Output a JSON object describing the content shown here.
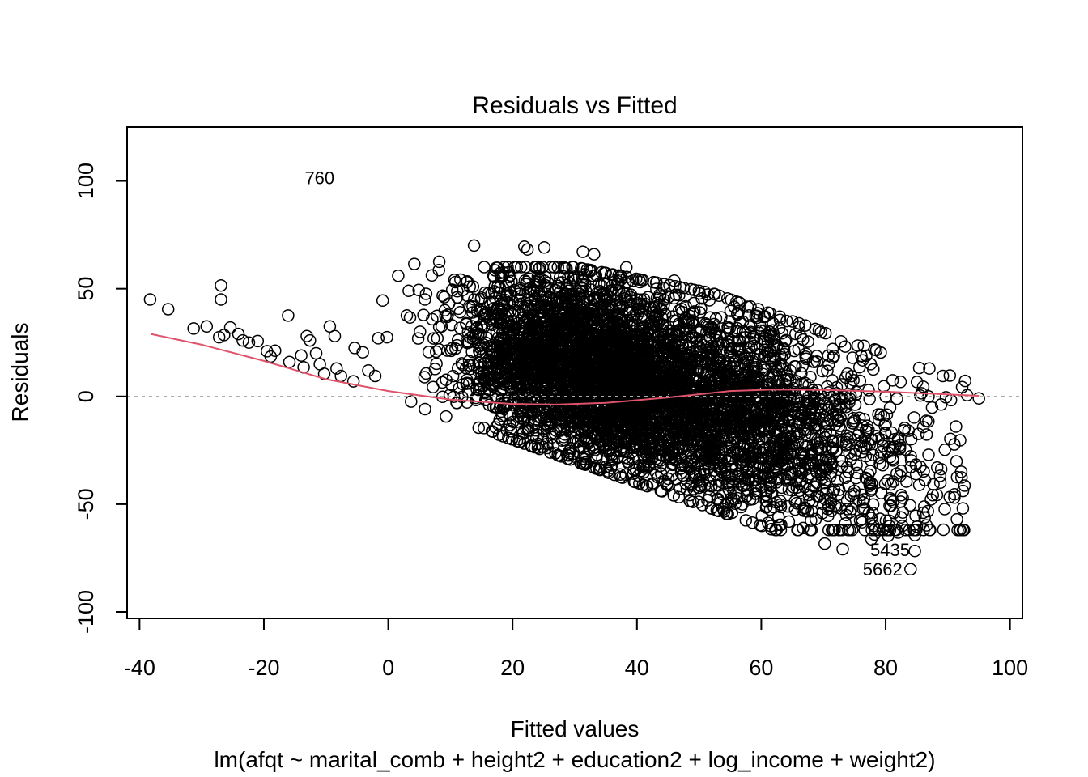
{
  "chart_data": {
    "type": "scatter",
    "title": "Residuals vs Fitted",
    "xlabel": "Fitted values",
    "subtitle": "lm(afqt ~ marital_comb + height2 + education2 + log_income + weight2)",
    "ylabel": "Residuals",
    "xlim": [
      -42,
      102
    ],
    "ylim": [
      -103,
      125
    ],
    "x_ticks": [
      -40,
      -20,
      0,
      20,
      40,
      60,
      80,
      100
    ],
    "x_tick_labels": [
      "-40",
      "-20",
      "0",
      "20",
      "40",
      "60",
      "80",
      "100"
    ],
    "y_ticks": [
      -100,
      -50,
      0,
      50,
      100
    ],
    "y_tick_labels": [
      "-100",
      "-50",
      "0",
      "50",
      "100"
    ],
    "reference_line": {
      "y": 0,
      "style": "dotted",
      "color": "#aaaaaa"
    },
    "smooth_color": "#df536b",
    "point_color": "#000000",
    "grid": false,
    "legend": "none",
    "smooth": [
      [
        -38.2,
        29
      ],
      [
        -30,
        24
      ],
      [
        -20,
        16.5
      ],
      [
        -10,
        8
      ],
      [
        0,
        2.5
      ],
      [
        10,
        -1.5
      ],
      [
        20,
        -3.5
      ],
      [
        27,
        -3.8
      ],
      [
        35,
        -3
      ],
      [
        45,
        -0.5
      ],
      [
        55,
        2.5
      ],
      [
        62,
        3.2
      ],
      [
        70,
        3
      ],
      [
        80,
        2.2
      ],
      [
        88,
        1.2
      ],
      [
        95,
        0.3
      ]
    ],
    "labeled_points": [
      {
        "label": "760",
        "x": -14.6,
        "y": 101.5
      },
      {
        "label": "5435",
        "x": 85.2,
        "y": -71
      },
      {
        "label": "5662",
        "x": 84.0,
        "y": -80
      }
    ],
    "points_sample": [
      [
        -38.3,
        45
      ],
      [
        -35.4,
        40.5
      ],
      [
        -31.3,
        31.5
      ],
      [
        -29.2,
        32.5
      ],
      [
        -26.9,
        51.5
      ],
      [
        -26.9,
        45
      ],
      [
        -27.2,
        27.5
      ],
      [
        -26.4,
        28.5
      ],
      [
        -25.4,
        32
      ],
      [
        -24.1,
        29
      ],
      [
        -23.4,
        26
      ],
      [
        -22.4,
        25
      ],
      [
        -21,
        25.7
      ],
      [
        -19.5,
        21
      ],
      [
        -18.2,
        21.2
      ],
      [
        -18.9,
        18.5
      ],
      [
        -16.1,
        37.5
      ],
      [
        -15.9,
        16
      ],
      [
        -14,
        19
      ],
      [
        -13.6,
        13.5
      ],
      [
        -13.1,
        28
      ],
      [
        -12.6,
        26
      ],
      [
        -11.6,
        20
      ],
      [
        -11,
        15
      ],
      [
        -10.3,
        10.5
      ],
      [
        -9.4,
        32.5
      ],
      [
        -8.6,
        28
      ],
      [
        -8.3,
        13
      ],
      [
        -7.6,
        9.5
      ],
      [
        -5.6,
        7
      ],
      [
        -5.4,
        22.5
      ],
      [
        -4.1,
        20.5
      ],
      [
        -3.2,
        12
      ],
      [
        -2.1,
        9.5
      ],
      [
        -1.6,
        27
      ],
      [
        -0.9,
        44.5
      ],
      [
        -0.2,
        27.5
      ],
      [
        1.6,
        56
      ],
      [
        3.3,
        49
      ],
      [
        4.2,
        61.5
      ],
      [
        5.1,
        30
      ],
      [
        5.9,
        45
      ],
      [
        8.2,
        62.5
      ],
      [
        9.1,
        40
      ],
      [
        10.3,
        49.5
      ],
      [
        11.1,
        46
      ],
      [
        12.6,
        53
      ],
      [
        13.8,
        70
      ],
      [
        14.3,
        39.5
      ],
      [
        17.2,
        58.5
      ],
      [
        21.9,
        69.5
      ],
      [
        22.4,
        68.2
      ],
      [
        24.2,
        59.1
      ],
      [
        25.1,
        69.1
      ],
      [
        31.3,
        67.1
      ],
      [
        33.1,
        66
      ],
      [
        38.3,
        59.9
      ],
      [
        46,
        53.7
      ],
      [
        51.4,
        47.3
      ],
      [
        57.8,
        41.6
      ],
      [
        64.1,
        35
      ],
      [
        69.6,
        29.8
      ],
      [
        75.5,
        23.6
      ],
      [
        79.2,
        20.4
      ],
      [
        85.4,
        13.2
      ],
      [
        89.2,
        9.5
      ],
      [
        92.3,
        4.3
      ],
      [
        93.1,
        0.6
      ],
      [
        95,
        -0.9
      ],
      [
        90.4,
        -19.7
      ],
      [
        88.8,
        -40
      ],
      [
        85.4,
        -41.1
      ],
      [
        85.6,
        -32.7
      ],
      [
        84.7,
        -64.4
      ],
      [
        84.7,
        -71.7
      ],
      [
        84.0,
        -80.2
      ],
      [
        82.0,
        -63.2
      ],
      [
        80.4,
        -64.7
      ],
      [
        80.6,
        -57.7
      ],
      [
        78.2,
        -64.1
      ],
      [
        77.7,
        -66.3
      ],
      [
        75.9,
        -57.5
      ],
      [
        73.1,
        -70.9
      ],
      [
        70.2,
        -68.3
      ],
      [
        68.0,
        -57.6
      ],
      [
        63.2,
        -59.6
      ],
      [
        60.1,
        -55.4
      ],
      [
        55.3,
        -54.0
      ],
      [
        50.5,
        -50.4
      ]
    ]
  }
}
